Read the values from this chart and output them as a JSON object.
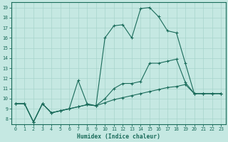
{
  "xlabel": "Humidex (Indice chaleur)",
  "bg_color": "#c5e8e2",
  "grid_color": "#a8d4cc",
  "line_color": "#1a6b5a",
  "xlim": [
    -0.5,
    23.5
  ],
  "ylim": [
    7.5,
    19.5
  ],
  "xticks": [
    0,
    1,
    2,
    3,
    4,
    5,
    6,
    7,
    8,
    9,
    10,
    11,
    12,
    13,
    14,
    15,
    16,
    17,
    18,
    19,
    20,
    21,
    22,
    23
  ],
  "yticks": [
    8,
    9,
    10,
    11,
    12,
    13,
    14,
    15,
    16,
    17,
    18,
    19
  ],
  "line1_x": [
    0,
    1,
    2,
    3,
    4,
    5,
    6,
    7,
    8,
    9,
    10,
    11,
    12,
    13,
    14,
    15,
    16,
    17,
    18,
    19,
    20,
    21,
    22,
    23
  ],
  "line1_y": [
    9.5,
    9.5,
    7.7,
    9.5,
    8.6,
    8.8,
    9.0,
    9.2,
    9.4,
    9.3,
    9.6,
    9.9,
    10.1,
    10.3,
    10.5,
    10.7,
    10.9,
    11.1,
    11.2,
    11.4,
    10.5,
    10.5,
    10.5,
    10.5
  ],
  "line2_x": [
    0,
    1,
    2,
    3,
    4,
    5,
    6,
    7,
    8,
    9,
    10,
    11,
    12,
    13,
    14,
    15,
    16,
    17,
    18,
    19,
    20,
    21,
    22,
    23
  ],
  "line2_y": [
    9.5,
    9.5,
    7.7,
    9.5,
    8.6,
    8.8,
    9.0,
    9.2,
    9.4,
    9.3,
    10.0,
    11.0,
    11.5,
    11.5,
    11.7,
    13.5,
    13.5,
    13.7,
    13.9,
    11.6,
    10.5,
    10.5,
    10.5,
    10.5
  ],
  "line3_x": [
    0,
    1,
    2,
    3,
    4,
    5,
    6,
    7,
    8,
    9,
    10,
    11,
    12,
    13,
    14,
    15,
    16,
    17,
    18,
    19,
    20,
    21,
    22,
    23
  ],
  "line3_y": [
    9.5,
    9.5,
    7.7,
    9.5,
    8.6,
    8.8,
    9.0,
    11.8,
    9.5,
    9.3,
    16.0,
    17.2,
    17.3,
    16.0,
    18.9,
    19.0,
    18.1,
    16.7,
    16.5,
    13.5,
    10.5,
    10.5,
    10.5,
    10.5
  ]
}
